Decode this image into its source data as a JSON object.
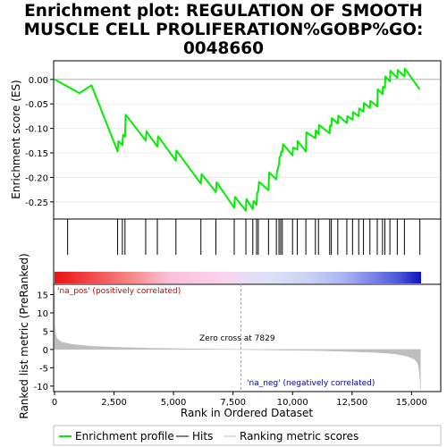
{
  "title": "Enrichment plot: REGULATION OF SMOOTH\nMUSCLE CELL PROLIFERATION%GOBP%GO:\n0048660",
  "colors": {
    "es_line": "#00ee00",
    "hit": "#000000",
    "metric_fill": "#bebebe",
    "pos_label": "#cc0000",
    "neg_label": "#0000aa"
  },
  "chart_data": {
    "type": "line",
    "es": {
      "ylabel": "Enrichment score (ES)",
      "ylim": [
        -0.285,
        0.038
      ],
      "yticks": [
        0.0,
        -0.05,
        -0.1,
        -0.15,
        -0.2,
        -0.25
      ],
      "ytick_labels": [
        "0.00",
        "-0.05",
        "-0.10",
        "-0.15",
        "-0.20",
        "-0.25"
      ],
      "series_name": "Enrichment profile",
      "points": [
        [
          0,
          0.0
        ],
        [
          1050,
          -0.028
        ],
        [
          1550,
          -0.012
        ],
        [
          2650,
          -0.147
        ],
        [
          2680,
          -0.126
        ],
        [
          2850,
          -0.134
        ],
        [
          2880,
          -0.113
        ],
        [
          2960,
          -0.117
        ],
        [
          2990,
          -0.072
        ],
        [
          3830,
          -0.125
        ],
        [
          3860,
          -0.106
        ],
        [
          4320,
          -0.137
        ],
        [
          4350,
          -0.116
        ],
        [
          5100,
          -0.166
        ],
        [
          5120,
          -0.145
        ],
        [
          6150,
          -0.213
        ],
        [
          6180,
          -0.193
        ],
        [
          6780,
          -0.23
        ],
        [
          6810,
          -0.21
        ],
        [
          7550,
          -0.262
        ],
        [
          7580,
          -0.24
        ],
        [
          8040,
          -0.268
        ],
        [
          8060,
          -0.244
        ],
        [
          8330,
          -0.265
        ],
        [
          8360,
          -0.248
        ],
        [
          8490,
          -0.256
        ],
        [
          8510,
          -0.232
        ],
        [
          8560,
          -0.228
        ],
        [
          8590,
          -0.209
        ],
        [
          8990,
          -0.226
        ],
        [
          9020,
          -0.19
        ],
        [
          9320,
          -0.204
        ],
        [
          9350,
          -0.188
        ],
        [
          9430,
          -0.173
        ],
        [
          9450,
          -0.16
        ],
        [
          9500,
          -0.155
        ],
        [
          9530,
          -0.147
        ],
        [
          9570,
          -0.148
        ],
        [
          9600,
          -0.132
        ],
        [
          10000,
          -0.155
        ],
        [
          10020,
          -0.139
        ],
        [
          10200,
          -0.143
        ],
        [
          10220,
          -0.126
        ],
        [
          10560,
          -0.147
        ],
        [
          10580,
          -0.108
        ],
        [
          10960,
          -0.12
        ],
        [
          10980,
          -0.104
        ],
        [
          11090,
          -0.112
        ],
        [
          11110,
          -0.093
        ],
        [
          11560,
          -0.11
        ],
        [
          11580,
          -0.094
        ],
        [
          11630,
          -0.096
        ],
        [
          11650,
          -0.079
        ],
        [
          11900,
          -0.09
        ],
        [
          11920,
          -0.074
        ],
        [
          12280,
          -0.089
        ],
        [
          12300,
          -0.075
        ],
        [
          12520,
          -0.082
        ],
        [
          12540,
          -0.067
        ],
        [
          12780,
          -0.075
        ],
        [
          12800,
          -0.059
        ],
        [
          12980,
          -0.066
        ],
        [
          13000,
          -0.048
        ],
        [
          13250,
          -0.058
        ],
        [
          13270,
          -0.044
        ],
        [
          13560,
          -0.055
        ],
        [
          13580,
          -0.02
        ],
        [
          13780,
          -0.03
        ],
        [
          13800,
          -0.015
        ],
        [
          13880,
          -0.017
        ],
        [
          13900,
          0.006
        ],
        [
          14090,
          -0.004
        ],
        [
          14110,
          0.018
        ],
        [
          14400,
          0.003
        ],
        [
          14420,
          0.019
        ],
        [
          14700,
          0.006
        ],
        [
          14720,
          0.022
        ],
        [
          15350,
          -0.021
        ]
      ]
    },
    "hits": {
      "series_name": "Hits",
      "positions": [
        550,
        2650,
        2850,
        2960,
        3830,
        4320,
        5100,
        6150,
        6780,
        7550,
        8040,
        8330,
        8490,
        8560,
        8990,
        9320,
        9430,
        9500,
        9570,
        10000,
        10200,
        10560,
        10960,
        11090,
        11560,
        11630,
        11900,
        12280,
        12520,
        12780,
        12980,
        13250,
        13560,
        13780,
        13880,
        14090,
        14400,
        14700,
        15350
      ]
    },
    "metric": {
      "series_name": "Ranking metric scores",
      "ylabel": "Ranked list metric (PreRanked)",
      "ylim": [
        -11.5,
        17.8
      ],
      "yticks": [
        15,
        10,
        5,
        0,
        -5,
        -10
      ],
      "ytick_labels": [
        "15",
        "10",
        "5",
        "0",
        "-5",
        "-10"
      ],
      "profile": [
        [
          0,
          16
        ],
        [
          8,
          7
        ],
        [
          30,
          4.5
        ],
        [
          100,
          3.0
        ],
        [
          300,
          2.0
        ],
        [
          800,
          1.35
        ],
        [
          1500,
          0.9
        ],
        [
          2500,
          0.6
        ],
        [
          4000,
          0.35
        ],
        [
          6000,
          0.15
        ],
        [
          7829,
          0.0
        ],
        [
          9000,
          -0.12
        ],
        [
          11000,
          -0.3
        ],
        [
          12500,
          -0.55
        ],
        [
          13500,
          -0.8
        ],
        [
          14300,
          -1.2
        ],
        [
          14800,
          -1.8
        ],
        [
          15100,
          -2.6
        ],
        [
          15250,
          -3.6
        ],
        [
          15300,
          -4.8
        ],
        [
          15330,
          -6.5
        ],
        [
          15360,
          -8.5
        ],
        [
          15375,
          -11
        ]
      ],
      "zero_cross": 7829,
      "zero_cross_label": "Zero cross at 7829",
      "pos_label": "'na_pos' (positively correlated)",
      "neg_label": "'na_neg' (negatively correlated)"
    },
    "xaxis": {
      "xlabel": "Rank in Ordered Dataset",
      "xlim": [
        0,
        15400
      ],
      "xticks": [
        0,
        2500,
        5000,
        7500,
        10000,
        12500,
        15000
      ],
      "xtick_labels": [
        "0",
        "2,500",
        "5,000",
        "7,500",
        "10,000",
        "12,500",
        "15,000"
      ]
    },
    "legend": {
      "placement": "bottom",
      "entries": [
        "Enrichment profile",
        "Hits",
        "Ranking metric scores"
      ]
    }
  }
}
